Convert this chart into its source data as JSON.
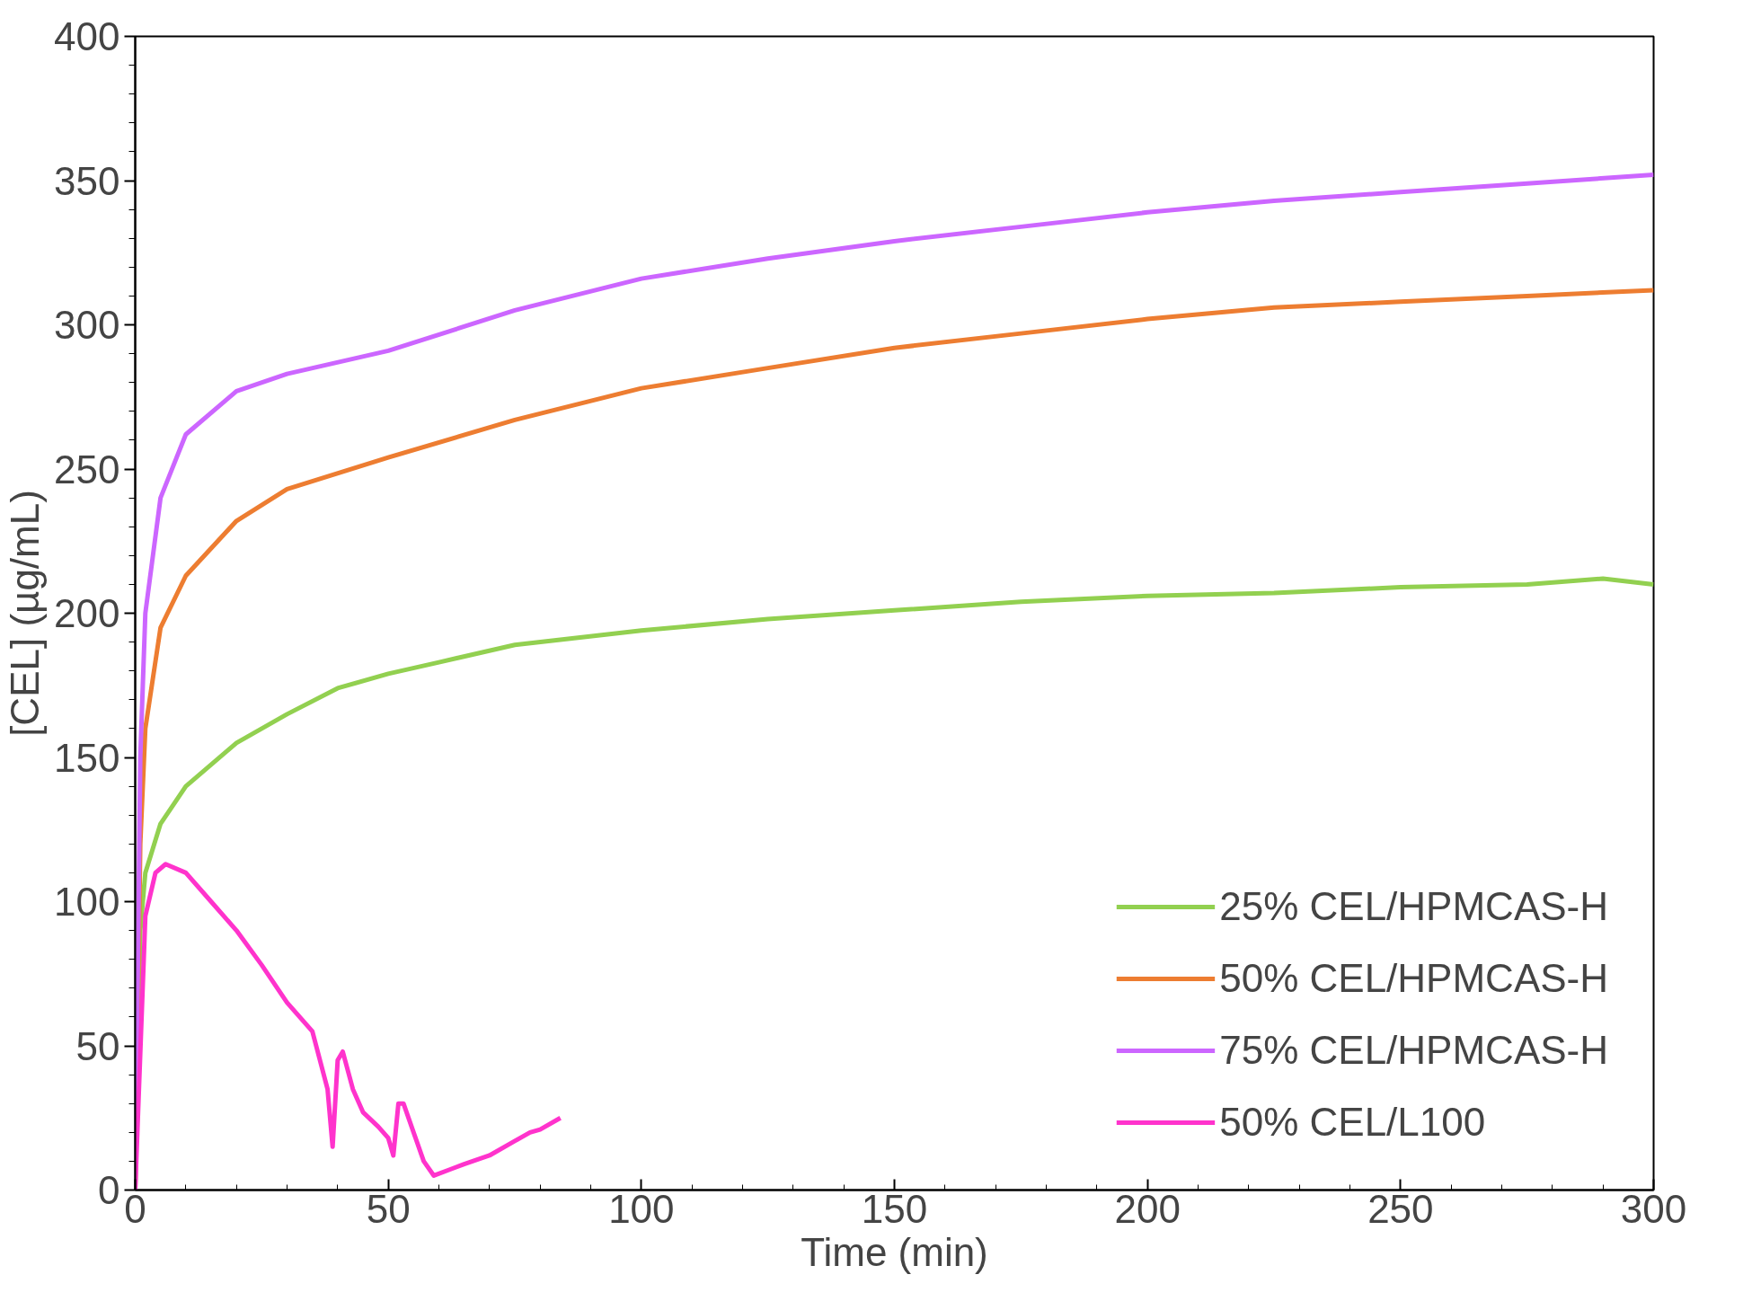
{
  "chart_data": {
    "type": "line",
    "xlabel": "Time (min)",
    "ylabel": "[CEL] (µg/mL)",
    "xlim": [
      0,
      300
    ],
    "ylim": [
      0,
      400
    ],
    "xticks": [
      0,
      50,
      100,
      150,
      200,
      250,
      300
    ],
    "yticks": [
      0,
      50,
      100,
      150,
      200,
      250,
      300,
      350,
      400
    ],
    "grid": false,
    "legend": "bottom right",
    "marker": "none",
    "line_style": "solid",
    "series": [
      {
        "name": "25% CEL/HPMCAS-H",
        "color": "#92d050",
        "x": [
          0,
          1,
          2,
          5,
          10,
          20,
          30,
          40,
          50,
          60,
          75,
          100,
          125,
          150,
          175,
          200,
          225,
          250,
          275,
          290,
          300
        ],
        "values": [
          0,
          90,
          110,
          127,
          140,
          155,
          165,
          174,
          179,
          183,
          189,
          194,
          198,
          201,
          204,
          206,
          207,
          209,
          210,
          212,
          210
        ]
      },
      {
        "name": "50% CEL/HPMCAS-H",
        "color": "#ed7d31",
        "x": [
          0,
          1,
          2,
          5,
          10,
          20,
          30,
          50,
          75,
          100,
          125,
          150,
          175,
          200,
          225,
          250,
          275,
          300
        ],
        "values": [
          0,
          120,
          160,
          195,
          213,
          232,
          243,
          254,
          267,
          278,
          285,
          292,
          297,
          302,
          306,
          308,
          310,
          312
        ]
      },
      {
        "name": "75% CEL/HPMCAS-H",
        "color": "#cc66ff",
        "x": [
          0,
          1,
          2,
          5,
          10,
          20,
          30,
          50,
          75,
          100,
          125,
          150,
          175,
          200,
          225,
          250,
          275,
          300
        ],
        "values": [
          0,
          150,
          200,
          240,
          262,
          277,
          283,
          291,
          305,
          316,
          323,
          329,
          334,
          339,
          343,
          346,
          349,
          352
        ]
      },
      {
        "name": "50% CEL/L100",
        "color": "#ff33cc",
        "x": [
          0,
          2,
          4,
          6,
          10,
          15,
          20,
          25,
          30,
          35,
          38,
          39,
          40,
          41,
          43,
          45,
          48,
          50,
          51,
          52,
          53,
          55,
          57,
          59,
          62,
          65,
          70,
          75,
          78,
          80,
          84
        ],
        "values": [
          0,
          95,
          110,
          113,
          110,
          100,
          90,
          78,
          65,
          55,
          35,
          15,
          45,
          48,
          35,
          27,
          22,
          18,
          12,
          30,
          30,
          20,
          10,
          5,
          7,
          9,
          12,
          17,
          20,
          21,
          25
        ]
      }
    ]
  }
}
